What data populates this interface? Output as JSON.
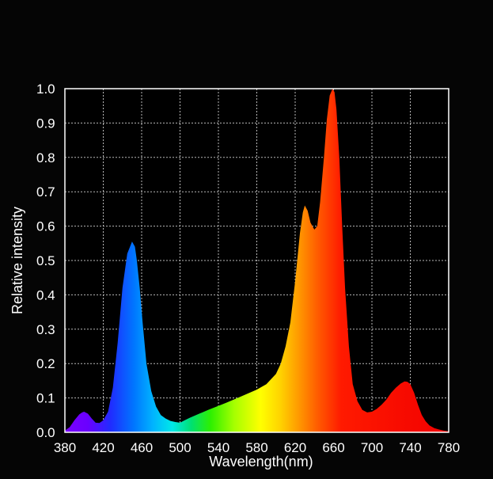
{
  "chart_data": {
    "type": "area",
    "title": "",
    "xlabel": "Wavelength(nm)",
    "ylabel": "Relative intensity",
    "xlim": [
      380,
      780
    ],
    "ylim": [
      0.0,
      1.0
    ],
    "x_ticks": [
      "380",
      "420",
      "460",
      "500",
      "540",
      "580",
      "620",
      "660",
      "700",
      "740",
      "780"
    ],
    "y_ticks": [
      "0.0",
      "0.1",
      "0.2",
      "0.3",
      "0.4",
      "0.5",
      "0.6",
      "0.7",
      "0.8",
      "0.9",
      "1.0"
    ],
    "grid": true,
    "fill": "wavelength spectrum colors",
    "series": [
      {
        "x": [
          380,
          385,
          390,
          395,
          398,
          400,
          404,
          408,
          412,
          416,
          420,
          425,
          430,
          435,
          440,
          445,
          450,
          453,
          455,
          458,
          461,
          465,
          470,
          475,
          480,
          485,
          490,
          495,
          500,
          505,
          510,
          520,
          530,
          540,
          550,
          560,
          570,
          580,
          590,
          600,
          605,
          610,
          615,
          620,
          625,
          628,
          630,
          633,
          636,
          640,
          643,
          646,
          650,
          653,
          656,
          659,
          661,
          663,
          666,
          669,
          672,
          676,
          680,
          685,
          690,
          695,
          700,
          705,
          710,
          715,
          720,
          725,
          730,
          734,
          737,
          740,
          744,
          748,
          752,
          756,
          760,
          765,
          770,
          775,
          780
        ],
        "values": [
          0.005,
          0.015,
          0.035,
          0.052,
          0.058,
          0.06,
          0.054,
          0.04,
          0.028,
          0.027,
          0.035,
          0.06,
          0.13,
          0.26,
          0.42,
          0.52,
          0.555,
          0.54,
          0.5,
          0.42,
          0.32,
          0.2,
          0.12,
          0.075,
          0.05,
          0.04,
          0.033,
          0.03,
          0.028,
          0.035,
          0.042,
          0.054,
          0.066,
          0.077,
          0.088,
          0.1,
          0.112,
          0.124,
          0.14,
          0.17,
          0.2,
          0.25,
          0.32,
          0.44,
          0.58,
          0.64,
          0.66,
          0.645,
          0.61,
          0.59,
          0.6,
          0.67,
          0.8,
          0.91,
          0.98,
          1.0,
          0.99,
          0.94,
          0.8,
          0.6,
          0.42,
          0.25,
          0.14,
          0.09,
          0.065,
          0.058,
          0.06,
          0.068,
          0.08,
          0.095,
          0.115,
          0.13,
          0.142,
          0.148,
          0.147,
          0.14,
          0.115,
          0.08,
          0.05,
          0.032,
          0.02,
          0.012,
          0.008,
          0.005,
          0.003
        ]
      }
    ]
  }
}
